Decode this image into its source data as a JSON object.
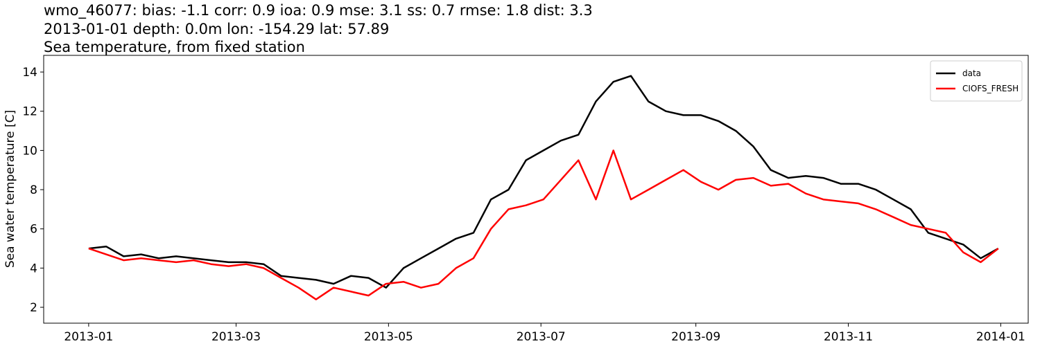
{
  "chart_data": {
    "type": "line",
    "title_lines": [
      "wmo_46077: bias: -1.1  corr: 0.9  ioa: 0.9  mse: 3.1  ss: 0.7  rmse: 1.8  dist: 3.3",
      "2013-01-01 depth: 0.0m lon: -154.29 lat: 57.89",
      "Sea temperature, from fixed station"
    ],
    "y_label": "Sea water temperature [C]",
    "x": [
      "2013-01-01",
      "2013-01-08",
      "2013-01-15",
      "2013-01-22",
      "2013-01-29",
      "2013-02-05",
      "2013-02-12",
      "2013-02-19",
      "2013-02-26",
      "2013-03-05",
      "2013-03-12",
      "2013-03-19",
      "2013-03-26",
      "2013-04-02",
      "2013-04-09",
      "2013-04-16",
      "2013-04-23",
      "2013-04-30",
      "2013-05-07",
      "2013-05-14",
      "2013-05-21",
      "2013-05-28",
      "2013-06-04",
      "2013-06-11",
      "2013-06-18",
      "2013-06-25",
      "2013-07-02",
      "2013-07-09",
      "2013-07-16",
      "2013-07-23",
      "2013-07-30",
      "2013-08-06",
      "2013-08-13",
      "2013-08-20",
      "2013-08-27",
      "2013-09-03",
      "2013-09-10",
      "2013-09-17",
      "2013-09-24",
      "2013-10-01",
      "2013-10-08",
      "2013-10-15",
      "2013-10-22",
      "2013-10-29",
      "2013-11-05",
      "2013-11-12",
      "2013-11-19",
      "2013-11-26",
      "2013-12-03",
      "2013-12-10",
      "2013-12-17",
      "2013-12-24",
      "2013-12-31"
    ],
    "series": [
      {
        "name": "data",
        "color": "#000000",
        "values": [
          5.0,
          5.1,
          4.6,
          4.7,
          4.5,
          4.6,
          4.5,
          4.4,
          4.3,
          4.3,
          4.2,
          3.6,
          3.5,
          3.4,
          3.2,
          3.6,
          3.5,
          3.0,
          4.0,
          4.5,
          5.0,
          5.5,
          5.8,
          7.5,
          8.0,
          9.5,
          10.0,
          10.5,
          10.8,
          12.5,
          13.5,
          13.8,
          12.5,
          12.0,
          11.8,
          11.8,
          11.5,
          11.0,
          10.2,
          9.0,
          8.6,
          8.7,
          8.6,
          8.3,
          8.3,
          8.0,
          7.5,
          7.0,
          5.8,
          5.5,
          5.2,
          4.5,
          5.0
        ]
      },
      {
        "name": "CIOFS_FRESH",
        "color": "#ff0000",
        "values": [
          5.0,
          4.7,
          4.4,
          4.5,
          4.4,
          4.3,
          4.4,
          4.2,
          4.1,
          4.2,
          4.0,
          3.5,
          3.0,
          2.4,
          3.0,
          2.8,
          2.6,
          3.2,
          3.3,
          3.0,
          3.2,
          4.0,
          4.5,
          6.0,
          7.0,
          7.2,
          7.5,
          8.5,
          9.5,
          7.5,
          10.0,
          7.5,
          8.0,
          8.5,
          9.0,
          8.4,
          8.0,
          8.5,
          8.6,
          8.2,
          8.3,
          7.8,
          7.5,
          7.4,
          7.3,
          7.0,
          6.6,
          6.2,
          6.0,
          5.8,
          4.8,
          4.3,
          5.0
        ]
      }
    ],
    "xlim": [
      "2012-12-14",
      "2014-01-12"
    ],
    "xticks": [
      {
        "value": "2013-01-01",
        "label": "2013-01"
      },
      {
        "value": "2013-03-01",
        "label": "2013-03"
      },
      {
        "value": "2013-05-01",
        "label": "2013-05"
      },
      {
        "value": "2013-07-01",
        "label": "2013-07"
      },
      {
        "value": "2013-09-01",
        "label": "2013-09"
      },
      {
        "value": "2013-11-01",
        "label": "2013-11"
      },
      {
        "value": "2014-01-01",
        "label": "2014-01"
      }
    ],
    "ylim": [
      1.19,
      14.85
    ],
    "yticks": [
      2,
      4,
      6,
      8,
      10,
      12,
      14
    ],
    "legend": "upper right"
  }
}
